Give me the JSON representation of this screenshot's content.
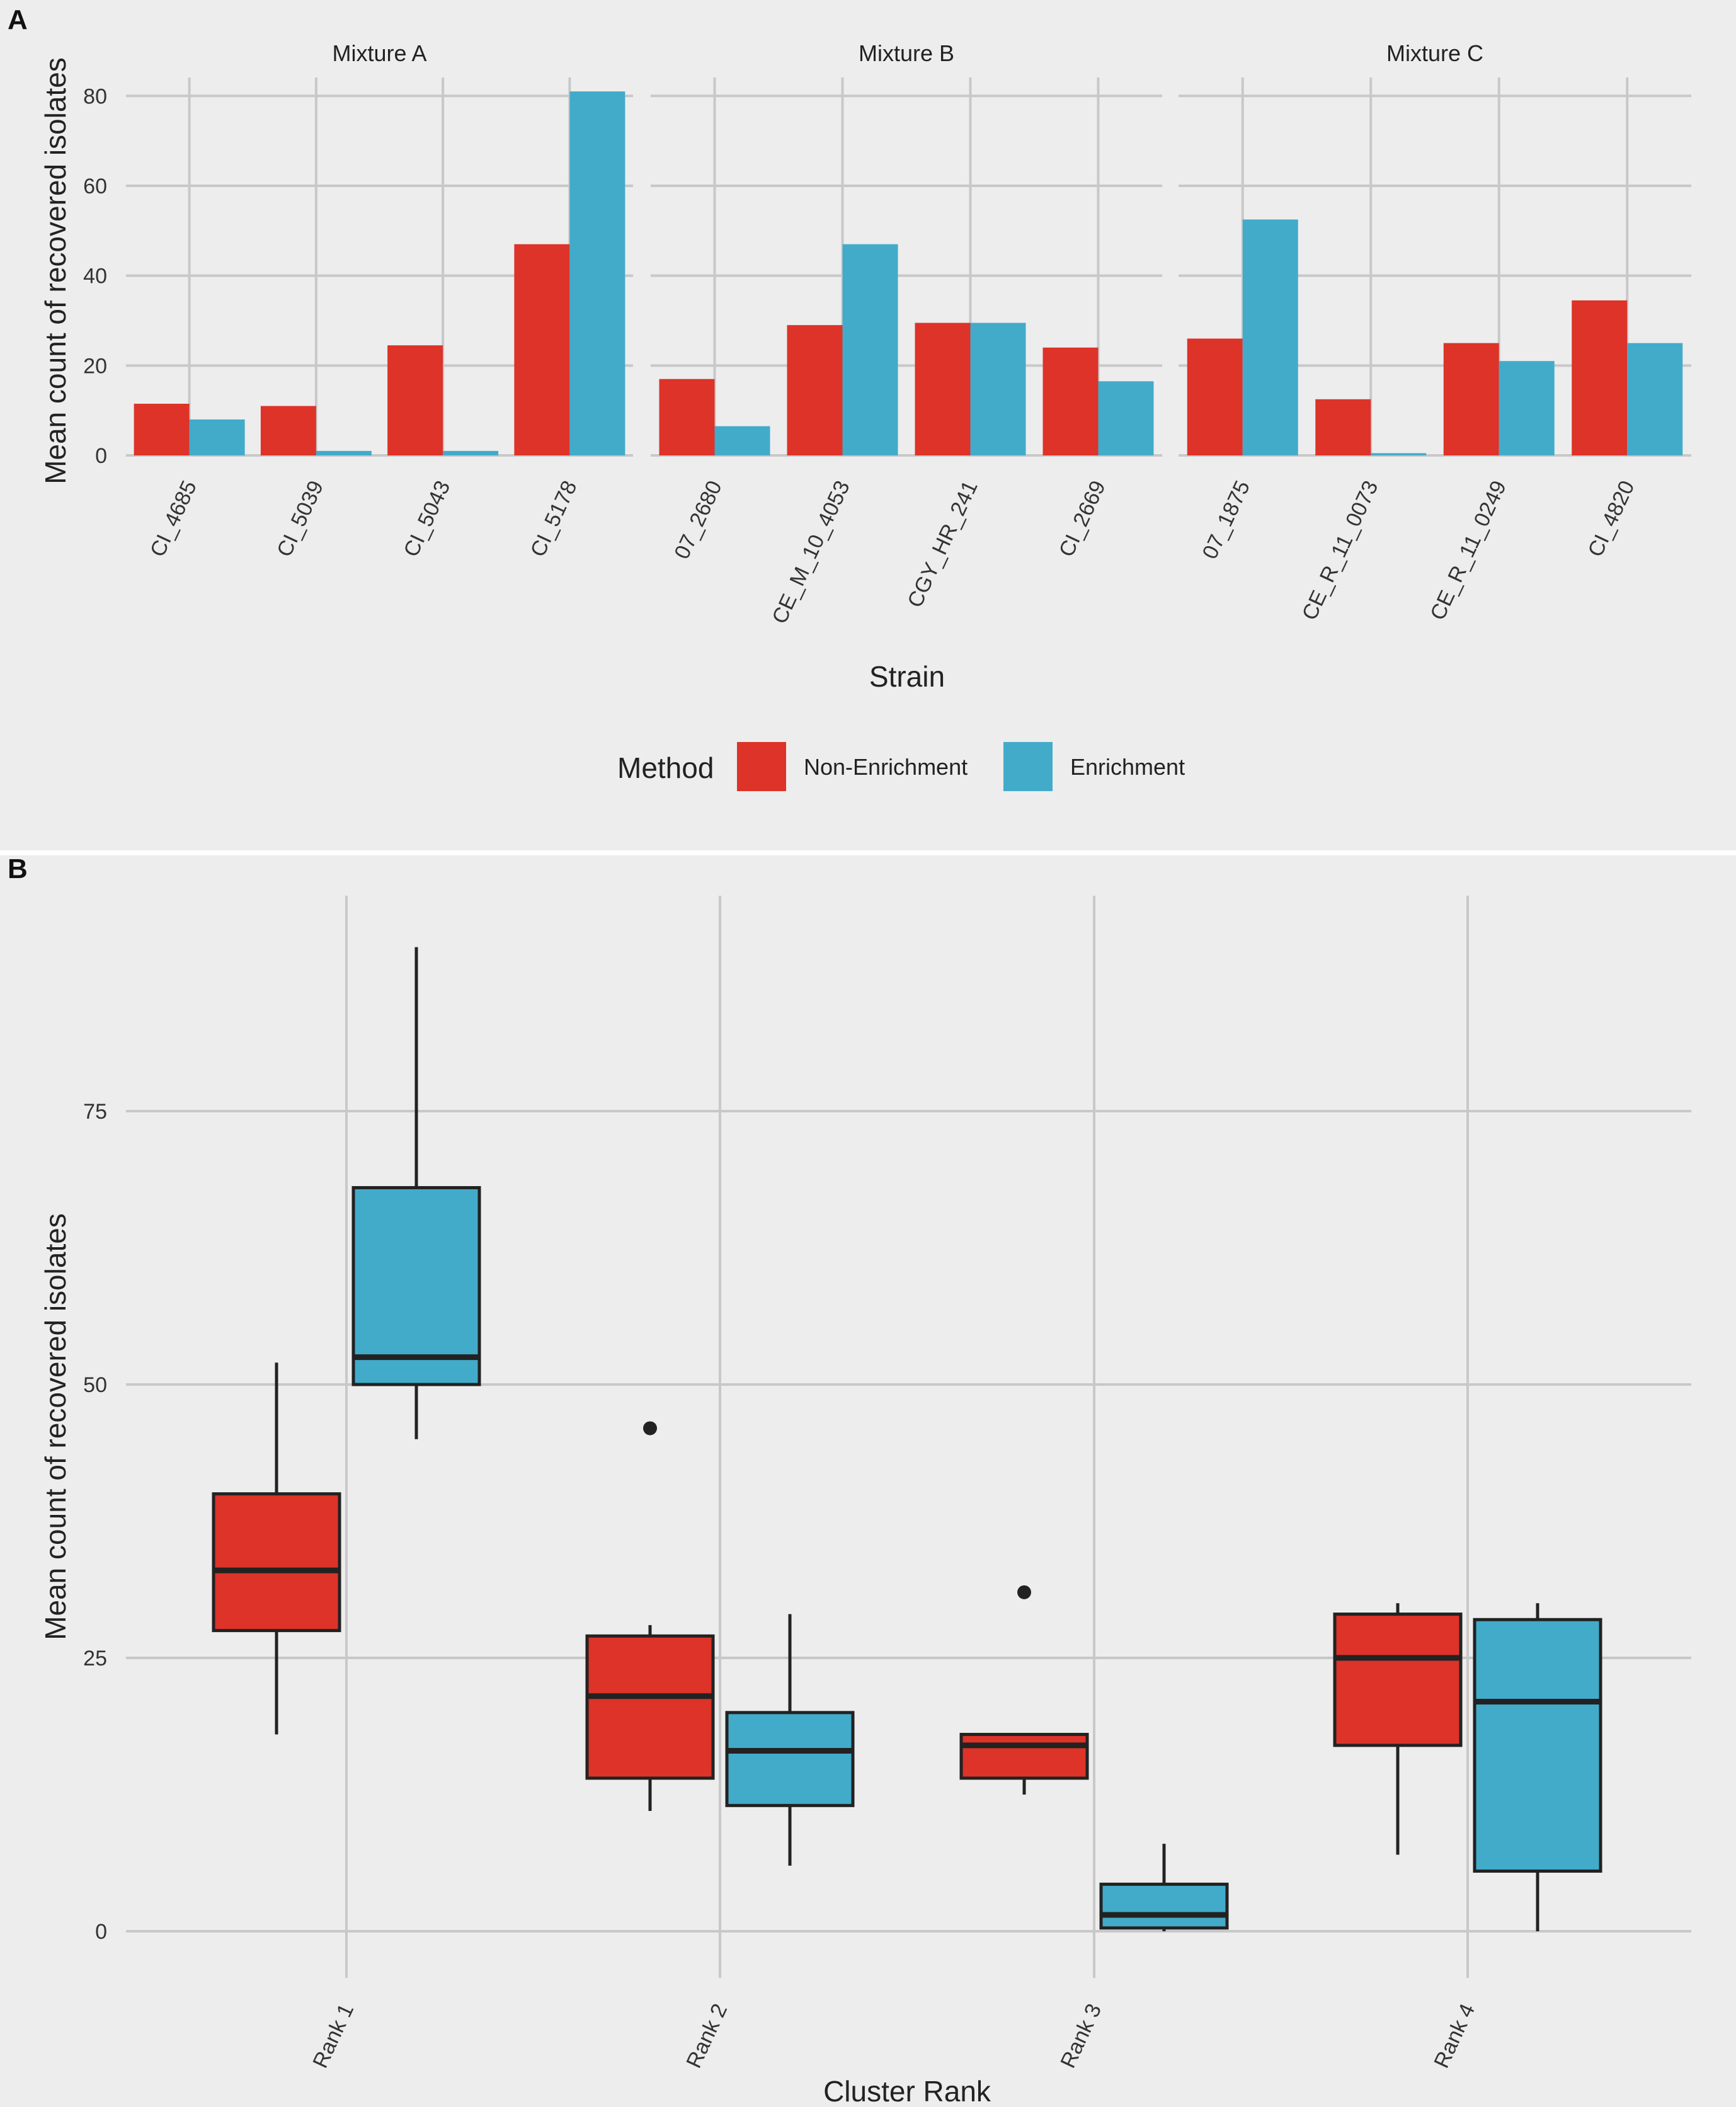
{
  "colors": {
    "non_enrichment": "#dd3329",
    "enrichment": "#42abca",
    "box_stroke": "#222222"
  },
  "chart_data": [
    {
      "panel": "A",
      "type": "bar",
      "xlabel": "Strain",
      "ylabel": "Mean count of recovered isolates",
      "ylim": [
        0,
        82
      ],
      "yticks": [
        0,
        20,
        40,
        60,
        80
      ],
      "legend": {
        "title": "Method",
        "position": "bottom",
        "entries": [
          "Non-Enrichment",
          "Enrichment"
        ]
      },
      "facets": [
        {
          "title": "Mixture A",
          "categories": [
            "CI_4685",
            "CI_5039",
            "CI_5043",
            "CI_5178"
          ],
          "series": [
            {
              "name": "Non-Enrichment",
              "values": [
                11.5,
                11,
                24.5,
                47
              ]
            },
            {
              "name": "Enrichment",
              "values": [
                8,
                1,
                1,
                81
              ]
            }
          ]
        },
        {
          "title": "Mixture B",
          "categories": [
            "07_2680",
            "CE_M_10_4053",
            "CGY_HR_241",
            "CI_2669"
          ],
          "series": [
            {
              "name": "Non-Enrichment",
              "values": [
                17,
                29,
                29.5,
                24
              ]
            },
            {
              "name": "Enrichment",
              "values": [
                6.5,
                47,
                29.5,
                16.5
              ]
            }
          ]
        },
        {
          "title": "Mixture C",
          "categories": [
            "07_1875",
            "CE_R_11_0073",
            "CE_R_11_0249",
            "CI_4820"
          ],
          "series": [
            {
              "name": "Non-Enrichment",
              "values": [
                26,
                12.5,
                25,
                34.5
              ]
            },
            {
              "name": "Enrichment",
              "values": [
                52.5,
                0.5,
                21,
                25
              ]
            }
          ]
        }
      ]
    },
    {
      "panel": "B",
      "type": "box",
      "xlabel": "Cluster Rank",
      "ylabel": "Mean count of recovered isolates",
      "ylim": [
        -2,
        94
      ],
      "yticks": [
        0,
        25,
        50,
        75
      ],
      "categories": [
        "Rank 1",
        "Rank 2",
        "Rank 3",
        "Rank 4"
      ],
      "series": [
        {
          "name": "Non-Enrichment",
          "boxes": [
            {
              "min": 18,
              "q1": 27.5,
              "median": 33,
              "q3": 40,
              "max": 52,
              "outliers": []
            },
            {
              "min": 11,
              "q1": 14,
              "median": 21.5,
              "q3": 27,
              "max": 28,
              "outliers": [
                46
              ]
            },
            {
              "min": 12.5,
              "q1": 14,
              "median": 17,
              "q3": 18,
              "max": 18,
              "outliers": [
                31
              ]
            },
            {
              "min": 7,
              "q1": 17,
              "median": 25,
              "q3": 29,
              "max": 30,
              "outliers": []
            }
          ]
        },
        {
          "name": "Enrichment",
          "boxes": [
            {
              "min": 45,
              "q1": 50,
              "median": 52.5,
              "q3": 68,
              "max": 90,
              "outliers": []
            },
            {
              "min": 6,
              "q1": 11.5,
              "median": 16.5,
              "q3": 20,
              "max": 29,
              "outliers": []
            },
            {
              "min": 0,
              "q1": 0.3,
              "median": 1.5,
              "q3": 4.3,
              "max": 8,
              "outliers": []
            },
            {
              "min": 0,
              "q1": 5.5,
              "median": 21,
              "q3": 28.5,
              "max": 30,
              "outliers": []
            }
          ]
        }
      ]
    }
  ]
}
